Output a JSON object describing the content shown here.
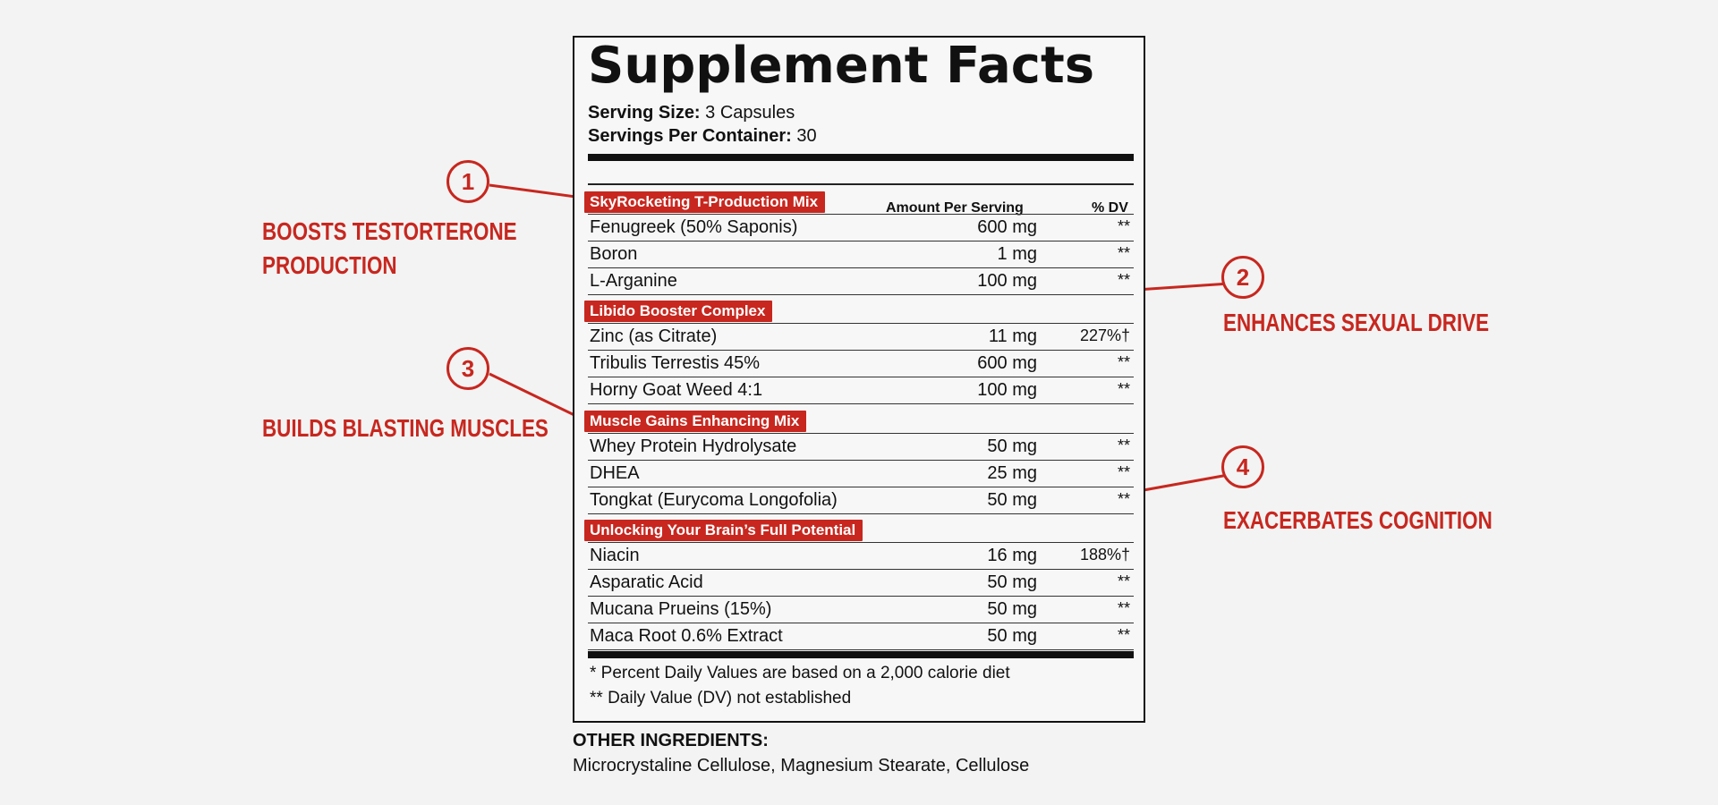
{
  "label": {
    "title": "Supplement Facts",
    "serving_size_label": "Serving Size:",
    "serving_size_value": "3 Capsules",
    "servings_per_container_label": "Servings Per Container:",
    "servings_per_container_value": "30",
    "col_amount": "Amount Per Serving",
    "col_dv": "% DV",
    "groups": [
      {
        "name": "SkyRocketing T-Production Mix",
        "items": [
          {
            "name": "Fenugreek (50% Saponis)",
            "amount": "600 mg",
            "dv": "**"
          },
          {
            "name": "Boron",
            "amount": "1 mg",
            "dv": "**"
          },
          {
            "name": "L-Arganine",
            "amount": "100 mg",
            "dv": "**"
          }
        ]
      },
      {
        "name": "Libido Booster Complex",
        "items": [
          {
            "name": "Zinc (as Citrate)",
            "amount": "11 mg",
            "dv": "227%†"
          },
          {
            "name": "Tribulis Terrestis 45%",
            "amount": "600 mg",
            "dv": "**"
          },
          {
            "name": "Horny Goat Weed 4:1",
            "amount": "100 mg",
            "dv": "**"
          }
        ]
      },
      {
        "name": "Muscle Gains Enhancing Mix",
        "items": [
          {
            "name": "Whey Protein Hydrolysate",
            "amount": "50 mg",
            "dv": "**"
          },
          {
            "name": "DHEA",
            "amount": "25 mg",
            "dv": "**"
          },
          {
            "name": "Tongkat (Eurycoma Longofolia)",
            "amount": "50 mg",
            "dv": "**"
          }
        ]
      },
      {
        "name": "Unlocking Your Brain’s Full Potential",
        "items": [
          {
            "name": "Niacin",
            "amount": "16 mg",
            "dv": "188%†"
          },
          {
            "name": "Asparatic Acid",
            "amount": "50 mg",
            "dv": "**"
          },
          {
            "name": "Mucana Prueins (15%)",
            "amount": "50 mg",
            "dv": "**"
          },
          {
            "name": "Maca Root 0.6% Extract",
            "amount": "50 mg",
            "dv": "**"
          }
        ]
      }
    ],
    "footnote_1": "* Percent Daily Values are based on a 2,000 calorie diet",
    "footnote_2": "** Daily Value (DV) not established"
  },
  "other_ingredients": {
    "title": "OTHER INGREDIENTS:",
    "list": "Microcrystaline Cellulose, Magnesium Stearate, Cellulose"
  },
  "callouts": [
    {
      "number": "1",
      "benefit_lines": [
        "BOOSTS TESTORTERONE",
        "PRODUCTION"
      ]
    },
    {
      "number": "2",
      "benefit_lines": [
        "ENHANCES SEXUAL DRIVE"
      ]
    },
    {
      "number": "3",
      "benefit_lines": [
        "BUILDS BLASTING MUSCLES"
      ]
    },
    {
      "number": "4",
      "benefit_lines": [
        "EXACERBATES COGNITION"
      ]
    }
  ],
  "colors": {
    "accent": "#c7271f",
    "ink": "#111111",
    "background": "#f3f3f3"
  }
}
